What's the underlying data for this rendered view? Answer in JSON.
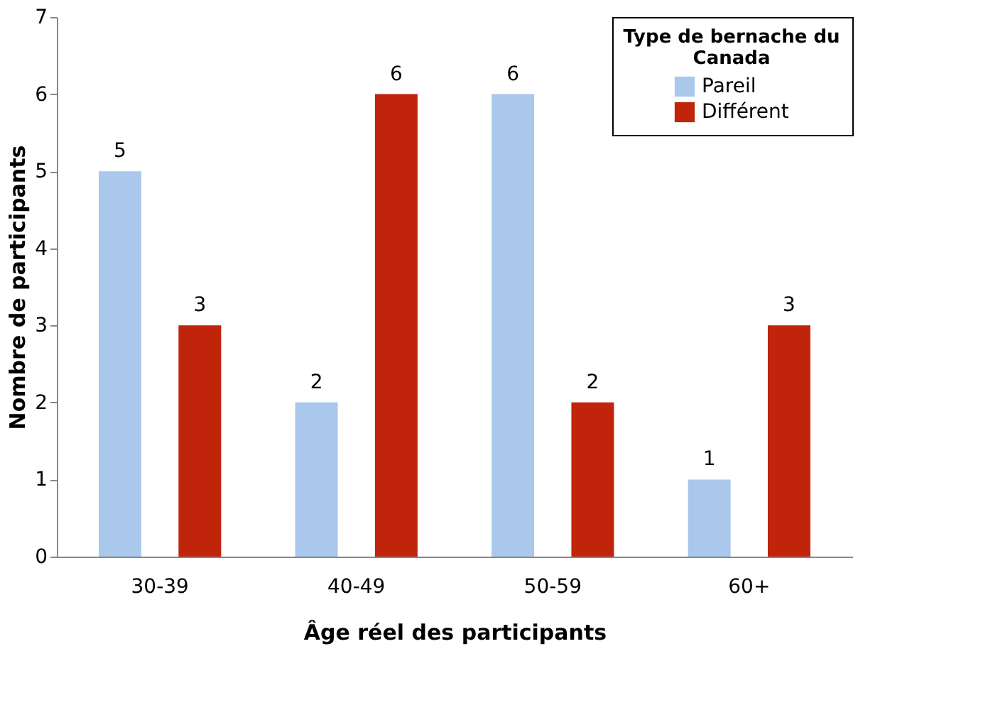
{
  "chart_data": {
    "type": "bar",
    "xlabel": "Âge réel des participants",
    "ylabel": "Nombre de participants",
    "legend_title": "Type de bernache du Canada",
    "categories": [
      "30-39",
      "40-49",
      "50-59",
      "60+"
    ],
    "series": [
      {
        "name": "Pareil",
        "color": "#a9c8ec",
        "values": [
          5,
          2,
          6,
          1
        ]
      },
      {
        "name": "Différent",
        "color": "#c0250c",
        "values": [
          3,
          6,
          2,
          3
        ]
      }
    ],
    "ylim": [
      0,
      7
    ],
    "yticks": [
      0,
      1,
      2,
      3,
      4,
      5,
      6,
      7
    ],
    "grid": false,
    "legend": "top right",
    "data_labels": true
  }
}
